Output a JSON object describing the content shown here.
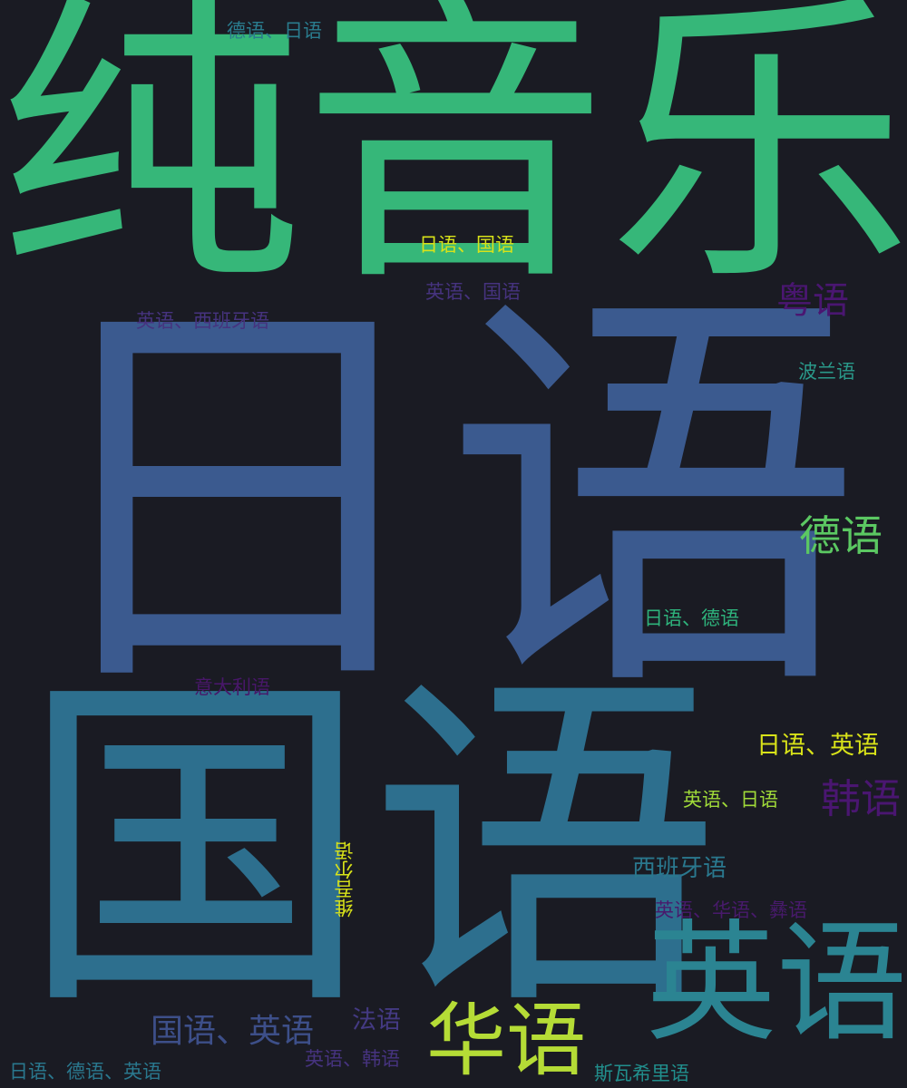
{
  "background": "#1a1b23",
  "words": [
    {
      "text": "纯音乐",
      "color": "#36b779"
    },
    {
      "text": "日语",
      "color": "#3b5a8f"
    },
    {
      "text": "国语",
      "color": "#2d6f8e"
    },
    {
      "text": "英语",
      "color": "#2b8492"
    },
    {
      "text": "华语",
      "color": "#b5dc36"
    },
    {
      "text": "德语",
      "color": "#5bc862"
    },
    {
      "text": "粤语",
      "color": "#4a1671"
    },
    {
      "text": "韩语",
      "color": "#4a1671"
    },
    {
      "text": "国语、英语",
      "color": "#3d4f89"
    },
    {
      "text": "日语、英语",
      "color": "#d8e219"
    },
    {
      "text": "西班牙语",
      "color": "#2a788e"
    },
    {
      "text": "法语",
      "color": "#443a83"
    },
    {
      "text": "德语、日语",
      "color": "#2a7c8e"
    },
    {
      "text": "日语、国语",
      "color": "#d8e219"
    },
    {
      "text": "英语、国语",
      "color": "#46337f"
    },
    {
      "text": "英语、西班牙语",
      "color": "#46337f"
    },
    {
      "text": "波兰语",
      "color": "#2a998a"
    },
    {
      "text": "日语、德语",
      "color": "#2eb37c"
    },
    {
      "text": "意大利语",
      "color": "#481769"
    },
    {
      "text": "英语、日语",
      "color": "#a0da39"
    },
    {
      "text": "维吾尔语",
      "color": "#d8e219"
    },
    {
      "text": "英语、华语、彝语",
      "color": "#481a6c"
    },
    {
      "text": "英语、韩语",
      "color": "#46337f"
    },
    {
      "text": "日语、德语、英语",
      "color": "#2a788e"
    },
    {
      "text": "斯瓦希里语",
      "color": "#218f8d"
    }
  ]
}
